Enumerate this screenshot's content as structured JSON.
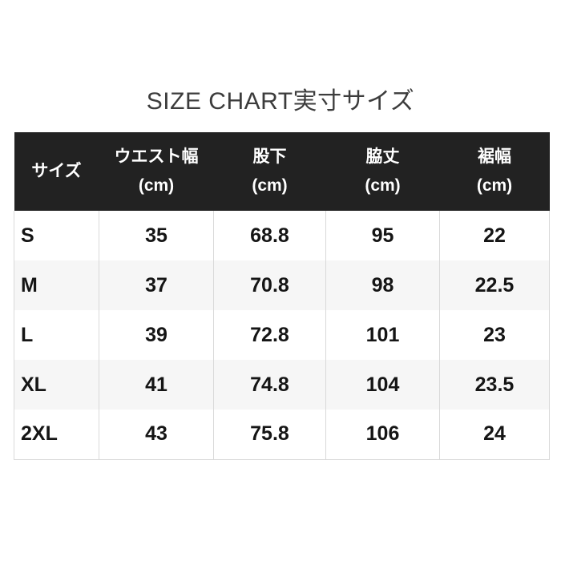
{
  "title": "SIZE CHART実寸サイズ",
  "table": {
    "columns": [
      {
        "label": "サイズ",
        "unit": ""
      },
      {
        "label": "ウエスト幅",
        "unit": "(cm)"
      },
      {
        "label": "股下",
        "unit": "(cm)"
      },
      {
        "label": "脇丈",
        "unit": "(cm)"
      },
      {
        "label": "裾幅",
        "unit": "(cm)"
      }
    ],
    "rows": [
      {
        "size": "S",
        "values": [
          "35",
          "68.8",
          "95",
          "22"
        ]
      },
      {
        "size": "M",
        "values": [
          "37",
          "70.8",
          "98",
          "22.5"
        ]
      },
      {
        "size": "L",
        "values": [
          "39",
          "72.8",
          "101",
          "23"
        ]
      },
      {
        "size": "XL",
        "values": [
          "41",
          "74.8",
          "104",
          "23.5"
        ]
      },
      {
        "size": "2XL",
        "values": [
          "43",
          "75.8",
          "106",
          "24"
        ]
      }
    ]
  },
  "chart_data": {
    "type": "table",
    "title": "SIZE CHART実寸サイズ",
    "columns": [
      "サイズ",
      "ウエスト幅 (cm)",
      "股下 (cm)",
      "脇丈 (cm)",
      "裾幅 (cm)"
    ],
    "rows": [
      [
        "S",
        35,
        68.8,
        95,
        22
      ],
      [
        "M",
        37,
        70.8,
        98,
        22.5
      ],
      [
        "L",
        39,
        72.8,
        101,
        23
      ],
      [
        "XL",
        41,
        74.8,
        104,
        23.5
      ],
      [
        "2XL",
        43,
        75.8,
        106,
        24
      ]
    ]
  },
  "colors": {
    "header_bg": "#222222",
    "header_text": "#ffffff",
    "row_bg": "#ffffff",
    "row_alt_bg": "#f6f6f6",
    "border": "#d9d9d9",
    "title_text": "#3c3c3c",
    "cell_text": "#151515"
  }
}
